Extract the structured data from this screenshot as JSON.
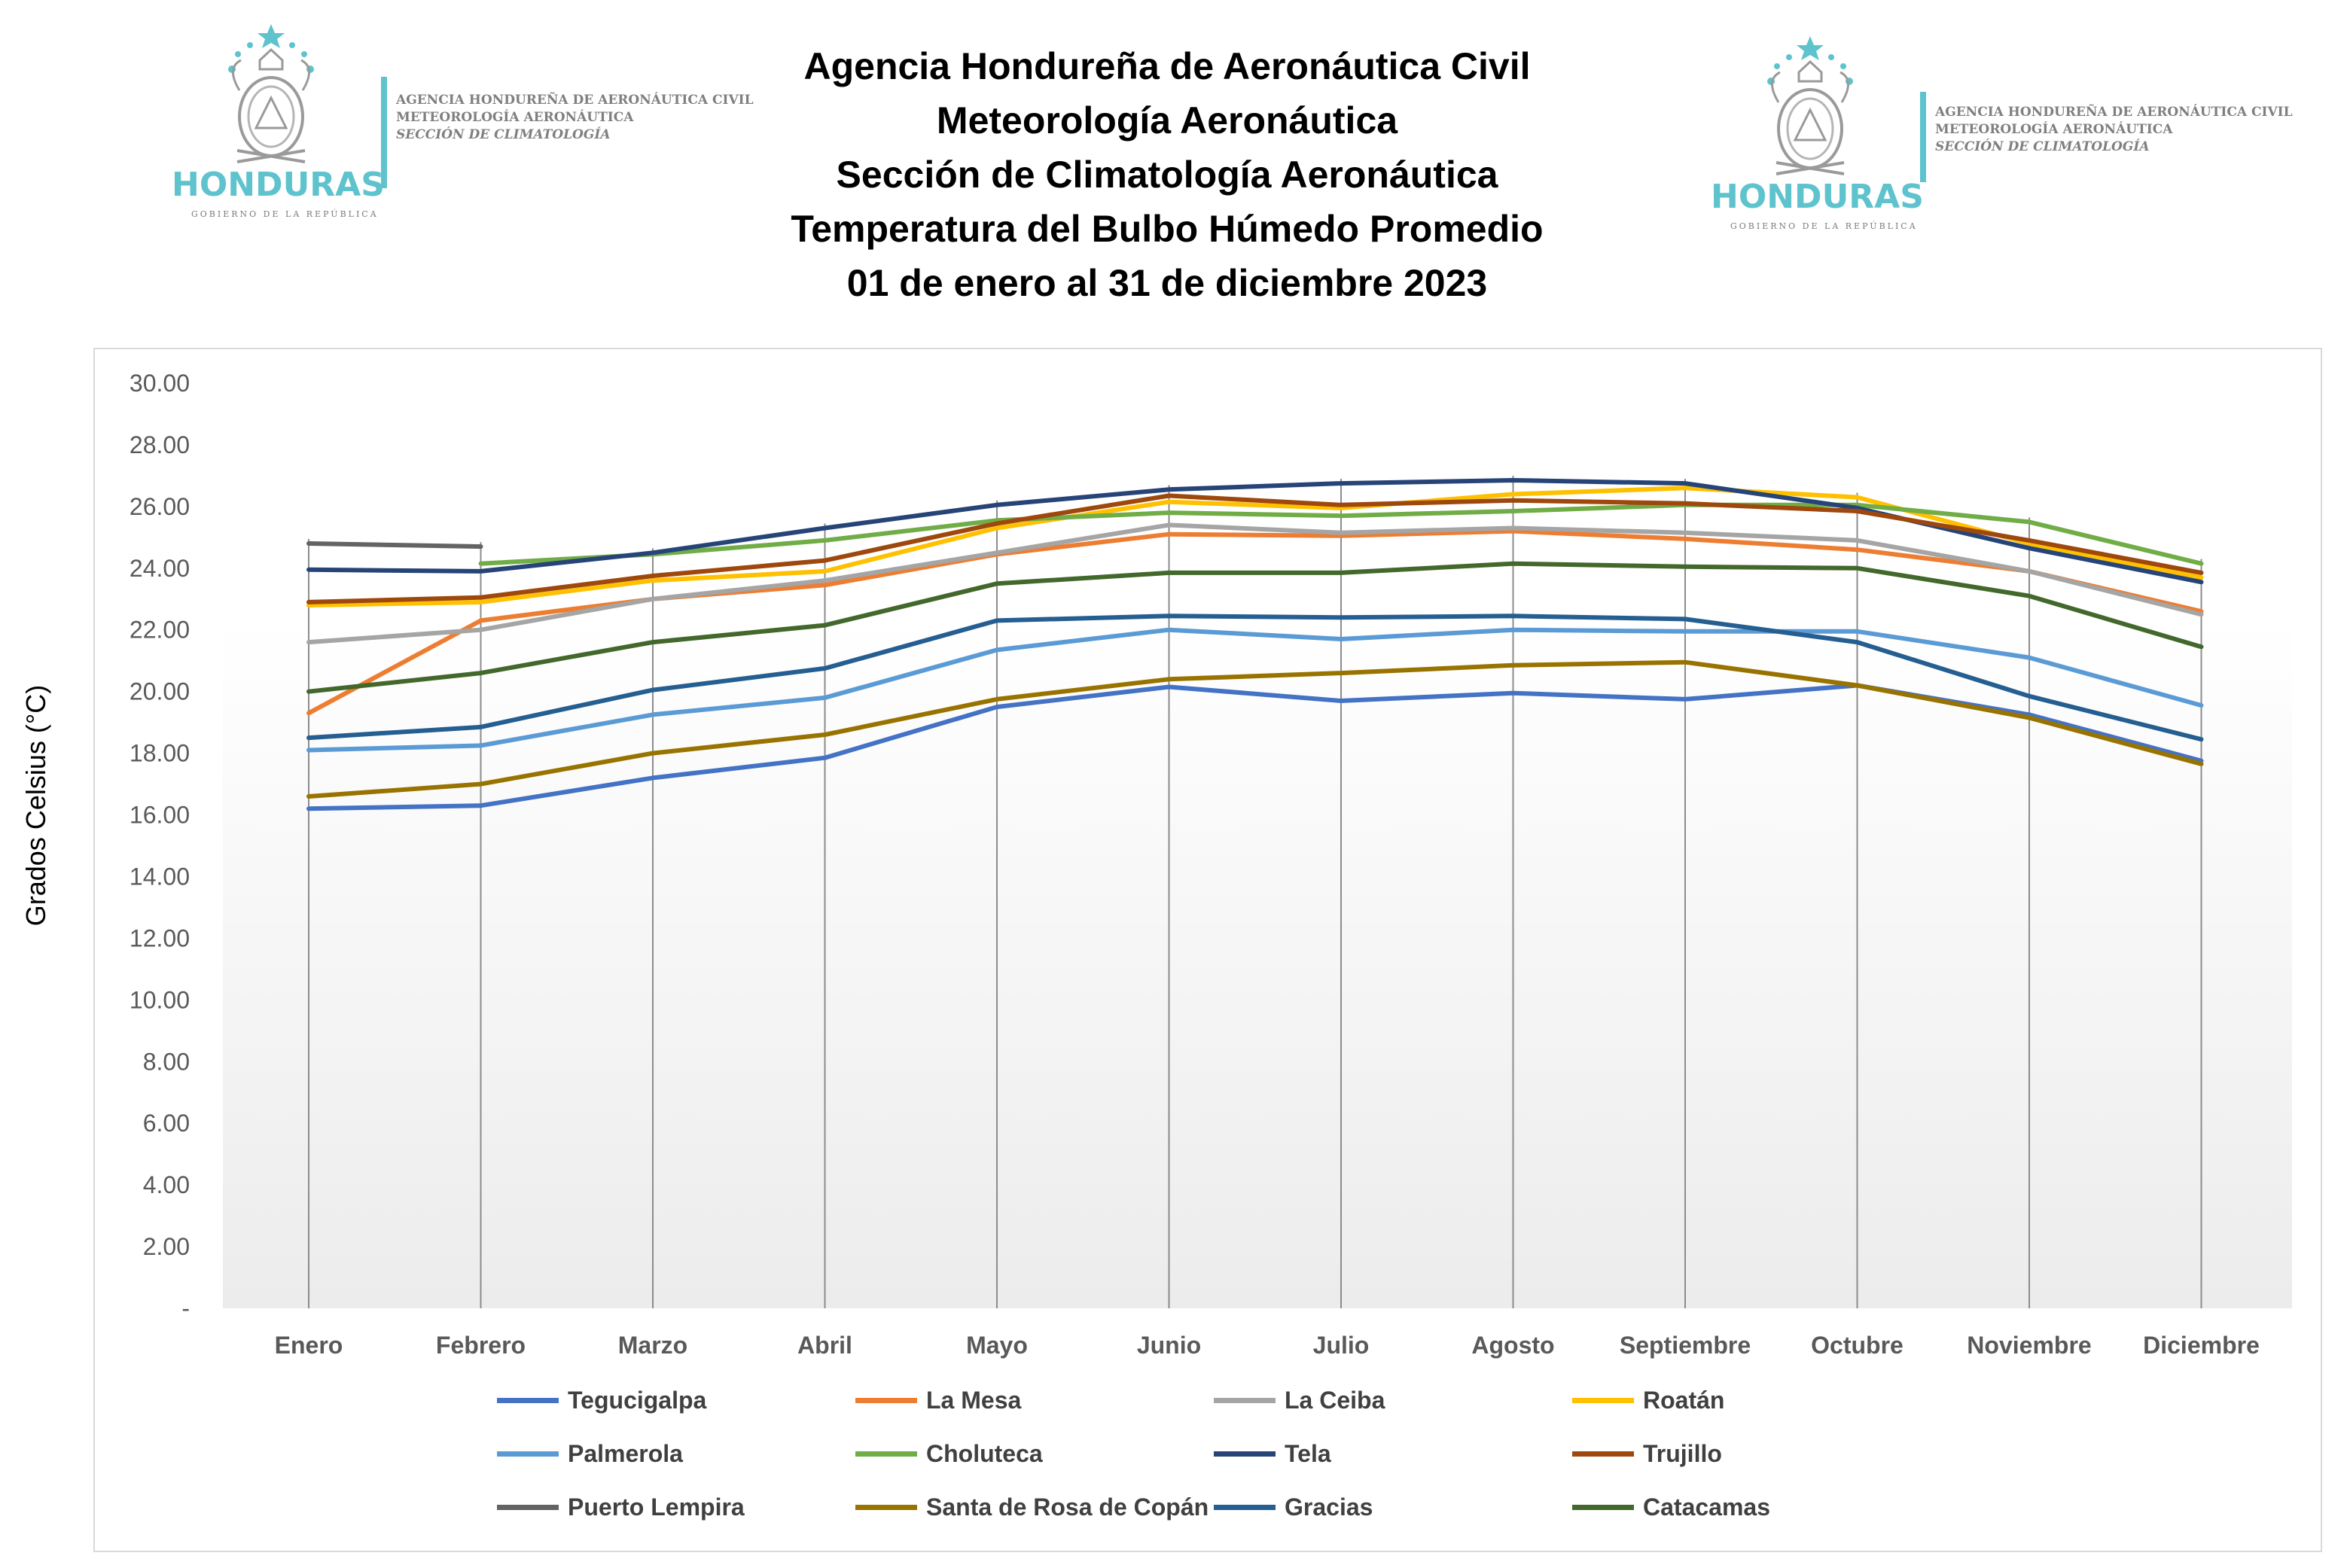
{
  "header": {
    "title_lines": [
      "Agencia Hondureña de Aeronáutica Civil",
      "Meteorología Aeronáutica",
      "Sección de Climatología Aeronáutica",
      "Temperatura del Bulbo Húmedo Promedio",
      "01 de enero al 31 de diciembre 2023"
    ]
  },
  "logos": {
    "brand": "HONDURAS",
    "subtitle": "GOBIERNO DE LA REPÚBLICA",
    "agency_line1": "AGENCIA HONDUREÑA DE AERONÁUTICA CIVIL",
    "agency_line2": "METEOROLOGÍA AERONÁUTICA",
    "agency_line3": "SECCIÓN DE CLIMATOLOGÍA",
    "accent_color": "#5ec3cd"
  },
  "chart_data": {
    "type": "line",
    "title": "Temperatura del Bulbo Húmedo Promedio",
    "ylabel": "Grados Celsius (°C)",
    "xlabel": "",
    "ylim": [
      0,
      30
    ],
    "yticks": [
      "-",
      "2.00",
      "4.00",
      "6.00",
      "8.00",
      "10.00",
      "12.00",
      "14.00",
      "16.00",
      "18.00",
      "20.00",
      "22.00",
      "24.00",
      "26.00",
      "28.00",
      "30.00"
    ],
    "categories": [
      "Enero",
      "Febrero",
      "Marzo",
      "Abril",
      "Mayo",
      "Junio",
      "Julio",
      "Agosto",
      "Septiembre",
      "Octubre",
      "Noviembre",
      "Diciembre"
    ],
    "grid": "vertical lines at categories",
    "legend_position": "bottom",
    "series": [
      {
        "name": "Tegucigalpa",
        "color": "#4472c4",
        "values": [
          16.2,
          16.3,
          17.2,
          17.85,
          19.5,
          20.15,
          19.7,
          19.95,
          19.75,
          20.2,
          19.25,
          17.75
        ]
      },
      {
        "name": "La Mesa",
        "color": "#ed7d31",
        "values": [
          19.3,
          22.3,
          23.0,
          23.45,
          24.45,
          25.1,
          25.05,
          25.2,
          24.95,
          24.6,
          23.9,
          22.6
        ]
      },
      {
        "name": "La Ceiba",
        "color": "#a5a5a5",
        "values": [
          21.6,
          22.0,
          23.0,
          23.6,
          24.5,
          25.4,
          25.15,
          25.3,
          25.15,
          24.9,
          23.9,
          22.5
        ]
      },
      {
        "name": "Roatán",
        "color": "#ffc000",
        "values": [
          22.8,
          22.9,
          23.6,
          23.9,
          25.3,
          26.15,
          25.95,
          26.4,
          26.6,
          26.3,
          24.8,
          23.7
        ]
      },
      {
        "name": "Palmerola",
        "color": "#5b9bd5",
        "values": [
          18.1,
          18.25,
          19.25,
          19.8,
          21.35,
          22.0,
          21.7,
          22.0,
          21.95,
          21.95,
          21.1,
          19.55
        ]
      },
      {
        "name": "Choluteca",
        "color": "#70ad47",
        "values": [
          null,
          24.15,
          24.45,
          24.9,
          25.55,
          25.8,
          25.7,
          25.85,
          26.05,
          26.05,
          25.5,
          24.15
        ]
      },
      {
        "name": "Tela",
        "color": "#264478",
        "values": [
          23.95,
          23.9,
          24.5,
          25.3,
          26.05,
          26.55,
          26.75,
          26.85,
          26.75,
          25.95,
          24.65,
          23.55
        ]
      },
      {
        "name": "Trujillo",
        "color": "#9e480e",
        "values": [
          22.9,
          23.05,
          23.75,
          24.25,
          25.45,
          26.35,
          26.05,
          26.2,
          26.1,
          25.85,
          24.9,
          23.85
        ]
      },
      {
        "name": "Puerto Lempira",
        "color": "#636363",
        "values": [
          24.8,
          24.7,
          null,
          null,
          null,
          null,
          null,
          null,
          null,
          null,
          null,
          null
        ]
      },
      {
        "name": "Santa de Rosa de Copán",
        "color": "#997300",
        "values": [
          16.6,
          17.0,
          18.0,
          18.6,
          19.75,
          20.4,
          20.6,
          20.85,
          20.95,
          20.2,
          19.15,
          17.65
        ]
      },
      {
        "name": "Gracias",
        "color": "#255e91",
        "values": [
          18.5,
          18.85,
          20.05,
          20.75,
          22.3,
          22.45,
          22.4,
          22.45,
          22.35,
          21.6,
          19.85,
          18.45
        ]
      },
      {
        "name": "Catacamas",
        "color": "#43682b",
        "values": [
          20.0,
          20.6,
          21.6,
          22.15,
          23.5,
          23.85,
          23.85,
          24.15,
          24.05,
          24.0,
          23.1,
          21.45
        ]
      }
    ]
  }
}
